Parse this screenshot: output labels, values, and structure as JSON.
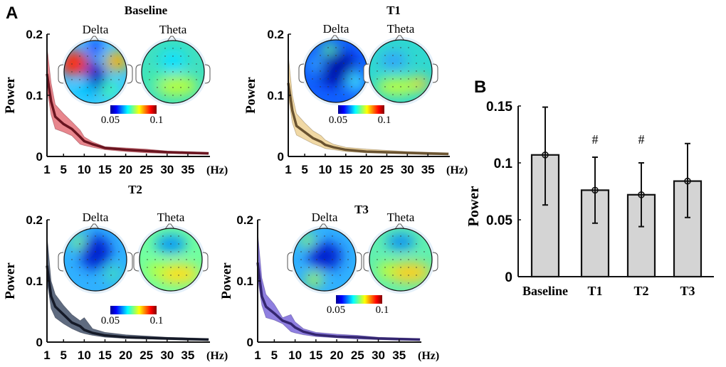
{
  "panel_labels": {
    "a": "A",
    "b": "B"
  },
  "topomap_labels": {
    "delta": "Delta",
    "theta": "Theta"
  },
  "colorbar": {
    "min_label": "0.05",
    "max_label": "0.1",
    "colormap": "jet"
  },
  "chart_data": [
    {
      "type": "area",
      "title": "Baseline",
      "ylabel": "Power",
      "xunit": "(Hz)",
      "xticks": [
        "1",
        "5",
        "10",
        "15",
        "20",
        "25",
        "30",
        "35"
      ],
      "yticks": [
        "0",
        "0.1",
        "0.2"
      ],
      "xlim": [
        1,
        40
      ],
      "ylim": [
        0,
        0.2
      ],
      "band_color": "#e8868d",
      "line_color": "#6a1520",
      "x": [
        1,
        2,
        3,
        5,
        7,
        9,
        10,
        12,
        15,
        20,
        25,
        30,
        35,
        40
      ],
      "mean": [
        0.135,
        0.09,
        0.065,
        0.053,
        0.045,
        0.032,
        0.025,
        0.02,
        0.014,
        0.011,
        0.009,
        0.007,
        0.006,
        0.005
      ],
      "lower": [
        0.11,
        0.068,
        0.045,
        0.04,
        0.034,
        0.02,
        0.018,
        0.015,
        0.011,
        0.008,
        0.006,
        0.005,
        0.004,
        0.004
      ],
      "upper": [
        0.18,
        0.12,
        0.085,
        0.07,
        0.057,
        0.043,
        0.032,
        0.024,
        0.016,
        0.014,
        0.012,
        0.009,
        0.008,
        0.007
      ]
    },
    {
      "type": "area",
      "title": "T1",
      "ylabel": "Power",
      "xunit": "(Hz)",
      "xticks": [
        "1",
        "5",
        "10",
        "15",
        "20",
        "25",
        "30",
        "35"
      ],
      "yticks": [
        "0",
        "0.1",
        "0.2"
      ],
      "xlim": [
        1,
        40
      ],
      "ylim": [
        0,
        0.2
      ],
      "band_color": "#f0d8a4",
      "line_color": "#6a5330",
      "x": [
        1,
        2,
        3,
        5,
        7,
        9,
        10,
        12,
        15,
        20,
        25,
        30,
        35,
        40
      ],
      "mean": [
        0.12,
        0.075,
        0.05,
        0.04,
        0.03,
        0.024,
        0.019,
        0.015,
        0.011,
        0.008,
        0.007,
        0.006,
        0.005,
        0.004
      ],
      "lower": [
        0.1,
        0.055,
        0.035,
        0.028,
        0.021,
        0.016,
        0.013,
        0.011,
        0.008,
        0.006,
        0.005,
        0.004,
        0.003,
        0.003
      ],
      "upper": [
        0.165,
        0.1,
        0.07,
        0.055,
        0.042,
        0.034,
        0.027,
        0.02,
        0.015,
        0.012,
        0.01,
        0.008,
        0.007,
        0.006
      ]
    },
    {
      "type": "area",
      "title": "T2",
      "ylabel": "Power",
      "xunit": "(Hz)",
      "xticks": [
        "1",
        "5",
        "10",
        "15",
        "20",
        "25",
        "30",
        "35"
      ],
      "yticks": [
        "0",
        "0.1",
        "0.2"
      ],
      "xlim": [
        1,
        40
      ],
      "ylim": [
        0,
        0.2
      ],
      "band_color": "#5f6b80",
      "line_color": "#151a28",
      "x": [
        1,
        2,
        3,
        5,
        7,
        9,
        10,
        12,
        15,
        20,
        25,
        30,
        35,
        40
      ],
      "mean": [
        0.125,
        0.075,
        0.058,
        0.045,
        0.032,
        0.026,
        0.02,
        0.015,
        0.011,
        0.008,
        0.007,
        0.006,
        0.005,
        0.004
      ],
      "lower": [
        0.1,
        0.055,
        0.04,
        0.03,
        0.022,
        0.016,
        0.014,
        0.011,
        0.008,
        0.006,
        0.005,
        0.004,
        0.003,
        0.003
      ],
      "upper": [
        0.175,
        0.1,
        0.078,
        0.06,
        0.045,
        0.035,
        0.04,
        0.022,
        0.016,
        0.012,
        0.01,
        0.008,
        0.007,
        0.006
      ]
    },
    {
      "type": "area",
      "title": "T3",
      "ylabel": "Power",
      "xunit": "(Hz)",
      "xticks": [
        "1",
        "5",
        "10",
        "15",
        "20",
        "25",
        "30",
        "35"
      ],
      "yticks": [
        "0",
        "0.1",
        "0.2"
      ],
      "xlim": [
        1,
        40
      ],
      "ylim": [
        0,
        0.2
      ],
      "band_color": "#8f7fe0",
      "line_color": "#342670",
      "x": [
        1,
        2,
        3,
        5,
        7,
        9,
        10,
        12,
        15,
        20,
        25,
        30,
        35,
        40
      ],
      "mean": [
        0.13,
        0.075,
        0.058,
        0.047,
        0.035,
        0.03,
        0.024,
        0.017,
        0.012,
        0.009,
        0.008,
        0.006,
        0.005,
        0.004
      ],
      "lower": [
        0.105,
        0.06,
        0.04,
        0.036,
        0.03,
        0.017,
        0.015,
        0.012,
        0.009,
        0.007,
        0.005,
        0.004,
        0.003,
        0.003
      ],
      "upper": [
        0.18,
        0.105,
        0.078,
        0.062,
        0.04,
        0.045,
        0.033,
        0.022,
        0.016,
        0.013,
        0.011,
        0.008,
        0.007,
        0.006
      ]
    },
    {
      "type": "bar",
      "ylabel": "Power",
      "categories": [
        "Baseline",
        "T1",
        "T2",
        "T3"
      ],
      "values": [
        0.107,
        0.076,
        0.072,
        0.084
      ],
      "error_low": [
        0.063,
        0.047,
        0.044,
        0.052
      ],
      "error_high": [
        0.149,
        0.105,
        0.1,
        0.117
      ],
      "annotations": [
        "",
        "#",
        "#",
        ""
      ],
      "yticks": [
        "0",
        "0.05",
        "0.1",
        "0.15"
      ],
      "ylim": [
        0,
        0.15
      ],
      "bar_color": "#d4d4d4"
    }
  ]
}
